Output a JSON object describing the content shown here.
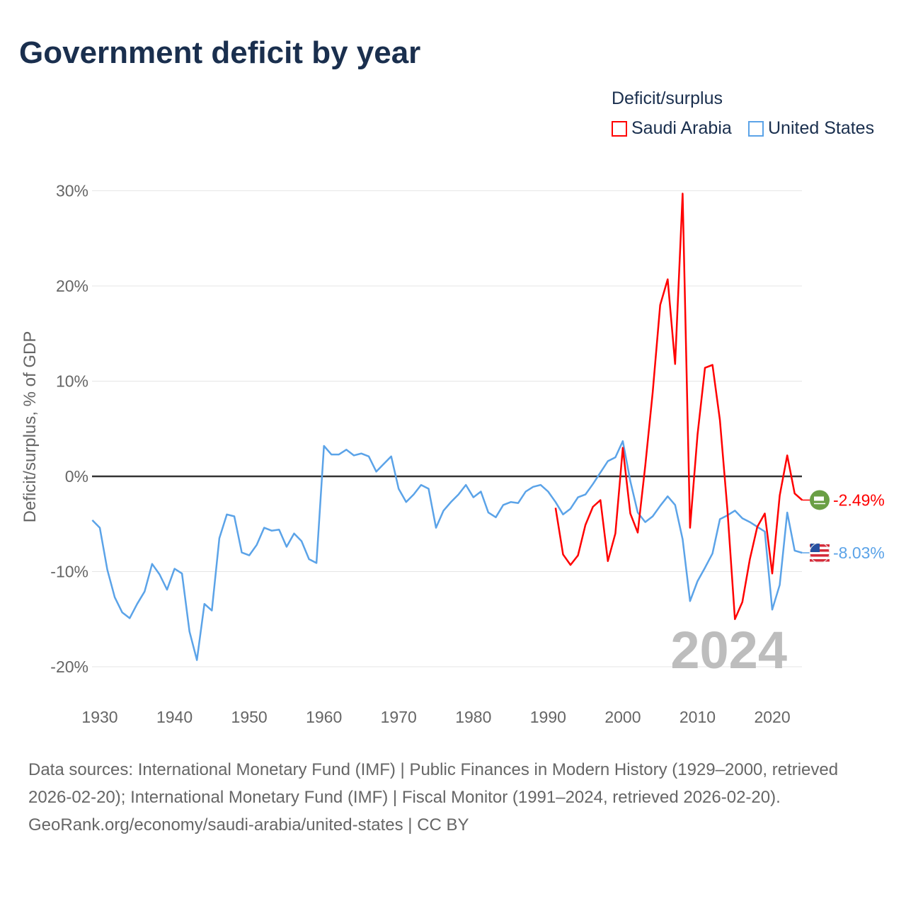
{
  "title": "Government deficit by year",
  "legend": {
    "title": "Deficit/surplus",
    "items": [
      {
        "label": "Saudi Arabia",
        "color": "#ff0000"
      },
      {
        "label": "United States",
        "color": "#5ba3e8"
      }
    ]
  },
  "footer": {
    "sources": "Data sources: International Monetary Fund (IMF) | Public Finances in Modern History (1929–2000, retrieved 2026-02-20); International Monetary Fund (IMF) | Fiscal Monitor (1991–2024, retrieved 2026-02-20).",
    "credit": "GeoRank.org/economy/saudi-arabia/united-states | CC BY"
  },
  "chart_data": {
    "type": "line",
    "title": "Government deficit by year",
    "ylabel": "Deficit/surplus, % of GDP",
    "xlabel": "",
    "ylim": [
      -20,
      30
    ],
    "xlim": [
      1929,
      2024
    ],
    "yticks": [
      -20,
      -10,
      0,
      10,
      20,
      30
    ],
    "ytick_labels": [
      "-20%",
      "-10%",
      "0%",
      "10%",
      "20%",
      "30%"
    ],
    "xticks": [
      1930,
      1940,
      1950,
      1960,
      1970,
      1980,
      1990,
      2000,
      2010,
      2020
    ],
    "xtick_labels": [
      "1930",
      "1940",
      "1950",
      "1960",
      "1970",
      "1980",
      "1990",
      "2000",
      "2010",
      "2020"
    ],
    "year_label": "2024",
    "grid": true,
    "legend_position": "top-right",
    "series": [
      {
        "name": "Saudi Arabia",
        "color": "#ff0000",
        "end_label": "-2.49%",
        "flag": "saudi-arabia-flag",
        "x": [
          1991,
          1992,
          1993,
          1994,
          1995,
          1996,
          1997,
          1998,
          1999,
          2000,
          2001,
          2002,
          2003,
          2004,
          2005,
          2006,
          2007,
          2008,
          2009,
          2010,
          2011,
          2012,
          2013,
          2014,
          2015,
          2016,
          2017,
          2018,
          2019,
          2020,
          2021,
          2022,
          2023,
          2024
        ],
        "values": [
          -3.3,
          -8.2,
          -9.3,
          -8.3,
          -5.1,
          -3.2,
          -2.5,
          -8.9,
          -6.0,
          3.0,
          -3.9,
          -5.9,
          1.1,
          8.8,
          18.0,
          20.7,
          11.8,
          29.7,
          -5.4,
          4.4,
          11.4,
          11.7,
          5.9,
          -3.5,
          -15.0,
          -13.2,
          -8.7,
          -5.3,
          -3.9,
          -10.2,
          -2.0,
          2.2,
          -1.8,
          -2.49
        ]
      },
      {
        "name": "United States",
        "color": "#5ba3e8",
        "end_label": "-8.03%",
        "flag": "united-states-flag",
        "x": [
          1929,
          1930,
          1931,
          1932,
          1933,
          1934,
          1935,
          1936,
          1937,
          1938,
          1939,
          1940,
          1941,
          1942,
          1943,
          1944,
          1945,
          1946,
          1947,
          1948,
          1949,
          1950,
          1951,
          1952,
          1953,
          1954,
          1955,
          1956,
          1957,
          1958,
          1959,
          1960,
          1961,
          1962,
          1963,
          1964,
          1965,
          1966,
          1967,
          1968,
          1969,
          1970,
          1971,
          1972,
          1973,
          1974,
          1975,
          1976,
          1977,
          1978,
          1979,
          1980,
          1981,
          1982,
          1983,
          1984,
          1985,
          1986,
          1987,
          1988,
          1989,
          1990,
          1991,
          1992,
          1993,
          1994,
          1995,
          1996,
          1997,
          1998,
          1999,
          2000,
          2001,
          2002,
          2003,
          2004,
          2005,
          2006,
          2007,
          2008,
          2009,
          2010,
          2011,
          2012,
          2013,
          2014,
          2015,
          2016,
          2017,
          2018,
          2019,
          2020,
          2021,
          2022,
          2023,
          2024
        ],
        "values": [
          -4.6,
          -5.4,
          -9.8,
          -12.7,
          -14.3,
          -14.9,
          -13.4,
          -12.1,
          -9.2,
          -10.3,
          -11.9,
          -9.7,
          -10.2,
          -16.3,
          -19.3,
          -13.4,
          -14.1,
          -6.5,
          -4.0,
          -4.2,
          -8.0,
          -8.3,
          -7.2,
          -5.4,
          -5.7,
          -5.6,
          -7.4,
          -6.0,
          -6.8,
          -8.7,
          -9.1,
          3.2,
          2.3,
          2.3,
          2.8,
          2.2,
          2.4,
          2.1,
          0.5,
          1.3,
          2.1,
          -1.3,
          -2.7,
          -1.9,
          -0.9,
          -1.3,
          -5.4,
          -3.6,
          -2.7,
          -1.9,
          -0.9,
          -2.2,
          -1.6,
          -3.8,
          -4.3,
          -3.0,
          -2.7,
          -2.8,
          -1.6,
          -1.1,
          -0.9,
          -1.6,
          -2.7,
          -4.0,
          -3.4,
          -2.2,
          -1.9,
          -0.8,
          0.4,
          1.6,
          2.0,
          3.7,
          -0.5,
          -3.8,
          -4.8,
          -4.2,
          -3.1,
          -2.1,
          -3.0,
          -6.6,
          -13.1,
          -11.0,
          -9.6,
          -8.1,
          -4.5,
          -4.1,
          -3.6,
          -4.4,
          -4.8,
          -5.3,
          -5.8,
          -14.0,
          -11.4,
          -3.8,
          -7.8,
          -8.03
        ]
      }
    ]
  }
}
